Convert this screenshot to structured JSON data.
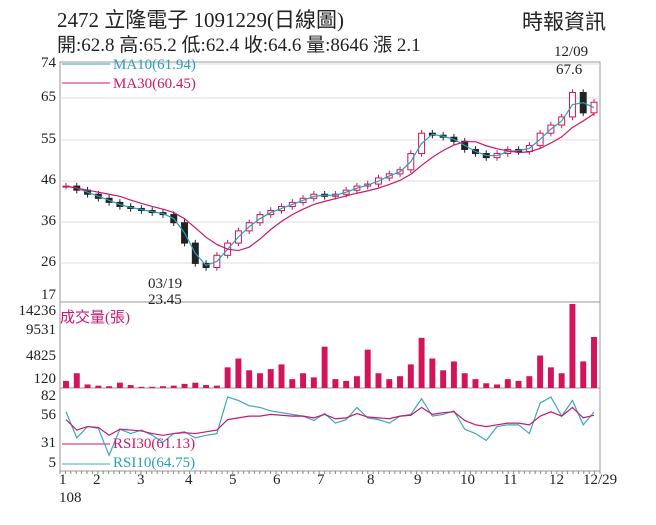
{
  "header": {
    "title": "2472  立隆電子 1091229(日線圖)",
    "source": "時報資訊",
    "ohlc": "開:62.8 高:65.2 低:62.4 收:64.6 量:8646 漲 2.1"
  },
  "legend": {
    "ma10": "MA10(61.94)",
    "ma30": "MA30(60.45)",
    "volume": "成交量(張)",
    "rsi30": "RSI30(61.13)",
    "rsi10": "RSI10(64.75)"
  },
  "annotations": {
    "high_date": "12/09",
    "high_value": "67.6",
    "low_date": "03/19",
    "low_value": "23.45"
  },
  "colors": {
    "up": "#d4145a",
    "down": "#222222",
    "ma10": "#2aa0b4",
    "ma30": "#c8186e",
    "volume": "#d4145a",
    "rsi10": "#3aa8c0",
    "rsi30": "#c8186e"
  },
  "chart_data": {
    "type": "candlestick",
    "price_ticks": [
      "74",
      "65",
      "55",
      "46",
      "36",
      "26",
      "17"
    ],
    "ylim": [
      17,
      74
    ],
    "volume_ticks": [
      "14236",
      "9531",
      "4825",
      "120"
    ],
    "rsi_ticks": [
      "82",
      "56",
      "31",
      "5"
    ],
    "x_labels": [
      "1",
      "2",
      "3",
      "4",
      "5",
      "6",
      "7",
      "8",
      "9",
      "10",
      "11",
      "12",
      "12/29"
    ],
    "x_sub": "108",
    "close": [
      44,
      43,
      42,
      41,
      40,
      39,
      38.5,
      38,
      37.5,
      37,
      35,
      30,
      25,
      24,
      27,
      30,
      33,
      35,
      37,
      38,
      39,
      40,
      41,
      42,
      41.5,
      42,
      43,
      44,
      44.5,
      46,
      47,
      48,
      52,
      57,
      56.5,
      56,
      55,
      53,
      52,
      51,
      52,
      53,
      52.5,
      54,
      57,
      59,
      61,
      67,
      62,
      64.6
    ],
    "volume": [
      1200,
      2500,
      600,
      400,
      300,
      900,
      500,
      200,
      200,
      300,
      400,
      700,
      900,
      500,
      400,
      3500,
      5000,
      3000,
      2500,
      3200,
      4000,
      1500,
      2500,
      1800,
      7000,
      1500,
      1200,
      2000,
      6500,
      2500,
      1500,
      2000,
      4000,
      8500,
      5000,
      3000,
      4500,
      2500,
      1500,
      800,
      600,
      1500,
      1200,
      2000,
      5500,
      3500,
      2500,
      14236,
      4500,
      8646
    ],
    "rsi10": [
      65,
      35,
      48,
      46,
      15,
      45,
      40,
      44,
      38,
      30,
      40,
      42,
      35,
      38,
      40,
      82,
      78,
      72,
      70,
      66,
      64,
      62,
      60,
      55,
      63,
      52,
      56,
      70,
      58,
      56,
      52,
      60,
      62,
      80,
      60,
      62,
      66,
      45,
      40,
      32,
      48,
      50,
      50,
      40,
      75,
      82,
      60,
      78,
      50,
      64.75
    ],
    "rsi30": [
      56,
      44,
      48,
      47,
      38,
      45,
      44,
      43,
      40,
      38,
      40,
      41,
      40,
      42,
      44,
      56,
      58,
      60,
      60,
      62,
      61,
      60,
      60,
      58,
      62,
      57,
      58,
      63,
      59,
      58,
      57,
      60,
      61,
      70,
      62,
      64,
      65,
      55,
      50,
      48,
      50,
      52,
      52,
      50,
      60,
      65,
      60,
      70,
      58,
      61.13
    ]
  }
}
